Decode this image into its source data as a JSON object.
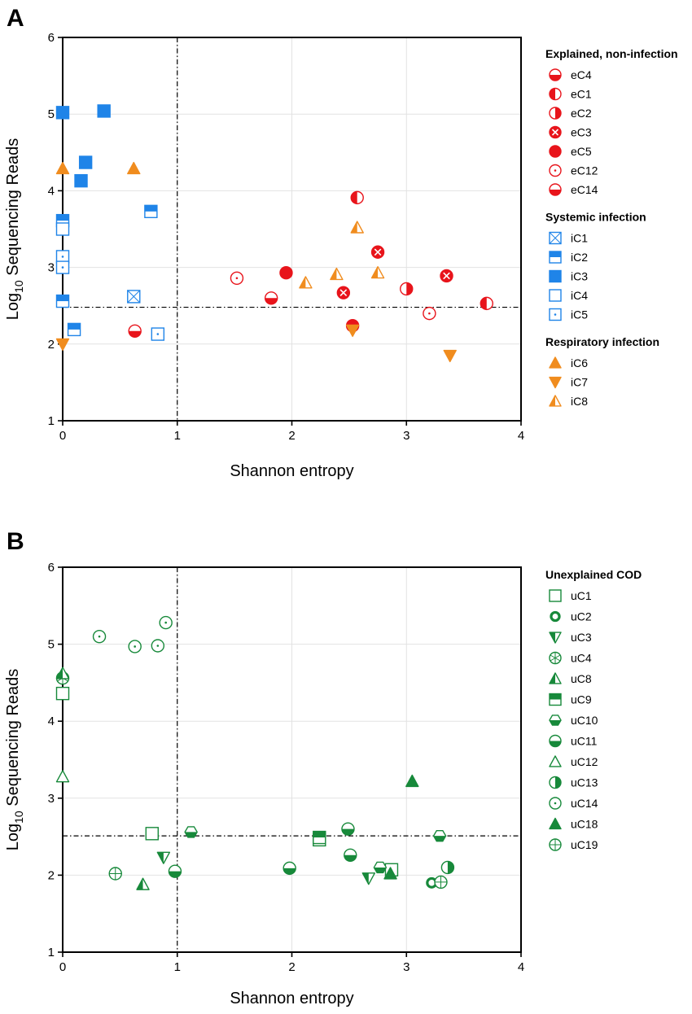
{
  "colors": {
    "red": "#e8141b",
    "blue": "#1f84e8",
    "orange": "#f08c1e",
    "green": "#17893a",
    "grid": "#e2e2e2",
    "axis": "#000000"
  },
  "chart_data": [
    {
      "panel": "A",
      "type": "scatter",
      "xlabel": "Shannon entropy",
      "ylabel_main": "Log",
      "ylabel_sub": "10",
      "ylabel_rest": " Sequencing Reads",
      "xlim": [
        0,
        4
      ],
      "ylim": [
        1,
        6
      ],
      "xticks": [
        0,
        1,
        2,
        3,
        4
      ],
      "yticks": [
        1,
        2,
        3,
        4,
        5,
        6
      ],
      "grid": true,
      "ref_lines": {
        "x": 1,
        "y": 2.48
      },
      "legend": [
        {
          "title": "Explained, non-infection",
          "entries": [
            {
              "label": "eC4",
              "marker": "circle-half-bottom",
              "color": "#e8141b"
            },
            {
              "label": "eC1",
              "marker": "circle-half-left",
              "color": "#e8141b"
            },
            {
              "label": "eC2",
              "marker": "circle-half-right",
              "color": "#e8141b"
            },
            {
              "label": "eC3",
              "marker": "circle-x",
              "color": "#e8141b"
            },
            {
              "label": "eC5",
              "marker": "circle-filled",
              "color": "#e8141b"
            },
            {
              "label": "eC12",
              "marker": "circle-dot",
              "color": "#e8141b"
            },
            {
              "label": "eC14",
              "marker": "circle-half-bottom",
              "color": "#e8141b"
            }
          ]
        },
        {
          "title": "Systemic infection",
          "entries": [
            {
              "label": "iC1",
              "marker": "square-x",
              "color": "#1f84e8"
            },
            {
              "label": "iC2",
              "marker": "square-half-top",
              "color": "#1f84e8"
            },
            {
              "label": "iC3",
              "marker": "square-filled",
              "color": "#1f84e8"
            },
            {
              "label": "iC4",
              "marker": "square-open",
              "color": "#1f84e8"
            },
            {
              "label": "iC5",
              "marker": "square-dot",
              "color": "#1f84e8"
            }
          ]
        },
        {
          "title": "Respiratory infection",
          "entries": [
            {
              "label": "iC6",
              "marker": "triangle-filled",
              "color": "#f08c1e"
            },
            {
              "label": "iC7",
              "marker": "triangle-down-filled",
              "color": "#f08c1e"
            },
            {
              "label": "iC8",
              "marker": "triangle-half",
              "color": "#f08c1e"
            }
          ]
        }
      ],
      "series": [
        {
          "name": "eC1",
          "marker": "circle-half-left",
          "color": "#e8141b",
          "points": [
            [
              2.57,
              3.91
            ],
            [
              3.7,
              2.53
            ]
          ]
        },
        {
          "name": "eC2",
          "marker": "circle-half-right",
          "color": "#e8141b",
          "points": [
            [
              3.0,
              2.72
            ]
          ]
        },
        {
          "name": "eC3",
          "marker": "circle-x",
          "color": "#e8141b",
          "points": [
            [
              2.75,
              3.2
            ],
            [
              2.45,
              2.67
            ],
            [
              3.35,
              2.89
            ]
          ]
        },
        {
          "name": "eC4",
          "marker": "circle-half-bottom",
          "color": "#e8141b",
          "points": [
            [
              1.82,
              2.6
            ],
            [
              0.63,
              2.17
            ]
          ]
        },
        {
          "name": "eC5",
          "marker": "circle-filled",
          "color": "#e8141b",
          "points": [
            [
              1.95,
              2.93
            ],
            [
              2.53,
              2.24
            ]
          ]
        },
        {
          "name": "eC12",
          "marker": "circle-dot",
          "color": "#e8141b",
          "points": [
            [
              1.52,
              2.86
            ],
            [
              3.2,
              2.4
            ]
          ]
        },
        {
          "name": "iC1",
          "marker": "square-x",
          "color": "#1f84e8",
          "points": [
            [
              0.62,
              2.62
            ]
          ]
        },
        {
          "name": "iC2",
          "marker": "square-half-top",
          "color": "#1f84e8",
          "points": [
            [
              0.0,
              3.61
            ],
            [
              0.77,
              3.73
            ],
            [
              0.0,
              2.56
            ],
            [
              0.1,
              2.19
            ]
          ]
        },
        {
          "name": "iC3",
          "marker": "square-filled",
          "color": "#1f84e8",
          "points": [
            [
              0.0,
              5.02
            ],
            [
              0.36,
              5.04
            ],
            [
              0.2,
              4.37
            ],
            [
              0.16,
              4.13
            ]
          ]
        },
        {
          "name": "iC4",
          "marker": "square-open",
          "color": "#1f84e8",
          "points": [
            [
              0.0,
              3.5
            ]
          ]
        },
        {
          "name": "iC5",
          "marker": "square-dot",
          "color": "#1f84e8",
          "points": [
            [
              0.0,
              3.14
            ],
            [
              0.0,
              3.0
            ],
            [
              0.83,
              2.13
            ]
          ]
        },
        {
          "name": "iC6",
          "marker": "triangle-filled",
          "color": "#f08c1e",
          "points": [
            [
              0.0,
              4.29
            ],
            [
              0.62,
              4.29
            ]
          ]
        },
        {
          "name": "iC7",
          "marker": "triangle-down-filled",
          "color": "#f08c1e",
          "points": [
            [
              0.0,
              2.0
            ],
            [
              3.38,
              1.85
            ],
            [
              2.53,
              2.18
            ]
          ]
        },
        {
          "name": "iC8",
          "marker": "triangle-half",
          "color": "#f08c1e",
          "points": [
            [
              2.57,
              3.52
            ],
            [
              2.12,
              2.8
            ],
            [
              2.39,
              2.91
            ],
            [
              2.75,
              2.93
            ]
          ]
        }
      ]
    },
    {
      "panel": "B",
      "type": "scatter",
      "xlabel": "Shannon entropy",
      "ylabel_main": "Log",
      "ylabel_sub": "10",
      "ylabel_rest": " Sequencing Reads",
      "xlim": [
        0,
        4
      ],
      "ylim": [
        1,
        6
      ],
      "xticks": [
        0,
        1,
        2,
        3,
        4
      ],
      "yticks": [
        1,
        2,
        3,
        4,
        5,
        6
      ],
      "grid": true,
      "ref_lines": {
        "x": 1,
        "y": 2.51
      },
      "legend": [
        {
          "title": "Unexplained COD",
          "entries": [
            {
              "label": "uC1",
              "marker": "square-open",
              "color": "#17893a"
            },
            {
              "label": "uC2",
              "marker": "ring-thick",
              "color": "#17893a"
            },
            {
              "label": "uC3",
              "marker": "triangle-down-half",
              "color": "#17893a"
            },
            {
              "label": "uC4",
              "marker": "circle-star",
              "color": "#17893a"
            },
            {
              "label": "uC8",
              "marker": "triangle-half",
              "color": "#17893a"
            },
            {
              "label": "uC9",
              "marker": "square-half-top",
              "color": "#17893a"
            },
            {
              "label": "uC10",
              "marker": "hexagon-half",
              "color": "#17893a"
            },
            {
              "label": "uC11",
              "marker": "circle-half-bottom",
              "color": "#17893a"
            },
            {
              "label": "uC12",
              "marker": "triangle-open",
              "color": "#17893a"
            },
            {
              "label": "uC13",
              "marker": "circle-half-right",
              "color": "#17893a"
            },
            {
              "label": "uC14",
              "marker": "circle-dot",
              "color": "#17893a"
            },
            {
              "label": "uC18",
              "marker": "triangle-filled",
              "color": "#17893a"
            },
            {
              "label": "uC19",
              "marker": "circle-plus",
              "color": "#17893a"
            }
          ]
        }
      ],
      "series": [
        {
          "name": "uC1",
          "marker": "square-open",
          "color": "#17893a",
          "points": [
            [
              0.0,
              4.36
            ],
            [
              0.78,
              2.54
            ],
            [
              2.87,
              2.07
            ],
            [
              2.24,
              2.46
            ]
          ]
        },
        {
          "name": "uC2",
          "marker": "ring-thick",
          "color": "#17893a",
          "points": [
            [
              3.22,
              1.9
            ]
          ]
        },
        {
          "name": "uC3",
          "marker": "triangle-down-half",
          "color": "#17893a",
          "points": [
            [
              0.88,
              2.23
            ],
            [
              2.67,
              1.96
            ]
          ]
        },
        {
          "name": "uC4",
          "marker": "circle-star",
          "color": "#17893a",
          "points": [
            [
              0.0,
              4.56
            ]
          ]
        },
        {
          "name": "uC8",
          "marker": "triangle-half",
          "color": "#17893a",
          "points": [
            [
              0.0,
              4.62
            ],
            [
              0.7,
              1.88
            ]
          ]
        },
        {
          "name": "uC9",
          "marker": "square-half-top",
          "color": "#17893a",
          "points": [
            [
              2.24,
              2.49
            ]
          ]
        },
        {
          "name": "uC10",
          "marker": "hexagon-half",
          "color": "#17893a",
          "points": [
            [
              1.12,
              2.56
            ],
            [
              2.77,
              2.1
            ],
            [
              3.29,
              2.51
            ]
          ]
        },
        {
          "name": "uC11",
          "marker": "circle-half-bottom",
          "color": "#17893a",
          "points": [
            [
              0.98,
              2.05
            ],
            [
              1.98,
              2.09
            ],
            [
              2.49,
              2.6
            ],
            [
              2.51,
              2.26
            ]
          ]
        },
        {
          "name": "uC12",
          "marker": "triangle-open",
          "color": "#17893a",
          "points": [
            [
              0.0,
              3.28
            ]
          ]
        },
        {
          "name": "uC13",
          "marker": "circle-half-right",
          "color": "#17893a",
          "points": [
            [
              3.36,
              2.1
            ]
          ]
        },
        {
          "name": "uC14",
          "marker": "circle-dot",
          "color": "#17893a",
          "points": [
            [
              0.32,
              5.1
            ],
            [
              0.63,
              4.97
            ],
            [
              0.83,
              4.98
            ],
            [
              0.9,
              5.28
            ]
          ]
        },
        {
          "name": "uC18",
          "marker": "triangle-filled",
          "color": "#17893a",
          "points": [
            [
              3.05,
              3.22
            ],
            [
              2.86,
              2.02
            ]
          ]
        },
        {
          "name": "uC19",
          "marker": "circle-plus",
          "color": "#17893a",
          "points": [
            [
              0.46,
              2.02
            ],
            [
              3.3,
              1.91
            ]
          ]
        }
      ]
    }
  ]
}
